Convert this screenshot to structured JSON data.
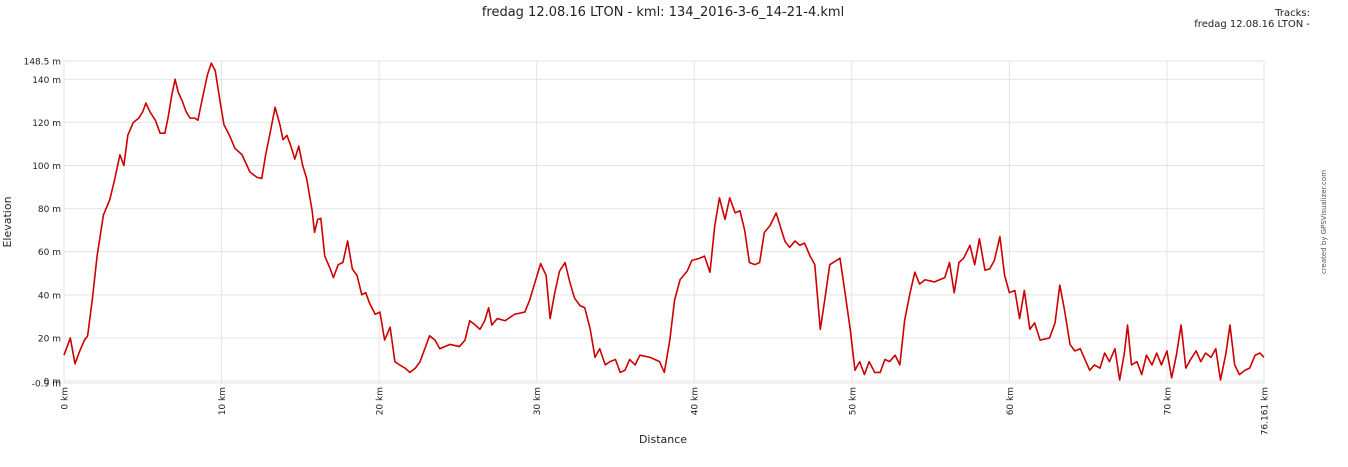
{
  "chart_data": {
    "type": "line",
    "title": "fredag 12.08.16 LTON - kml: 134_2016-3-6_14-21-4.kml",
    "legend_title": "Tracks:",
    "legend_position": "top-right",
    "x_label": "Distance",
    "y_label": "Elevation",
    "credit": "created by GPSVisualizer.com",
    "grid": true,
    "xlim": [
      0,
      76.161
    ],
    "ylim": [
      -0.9,
      148.5
    ],
    "xticks": [
      {
        "value": 0,
        "label": "0 km"
      },
      {
        "value": 10,
        "label": "10 km"
      },
      {
        "value": 20,
        "label": "20 km"
      },
      {
        "value": 30,
        "label": "30 km"
      },
      {
        "value": 40,
        "label": "40 km"
      },
      {
        "value": 50,
        "label": "50 km"
      },
      {
        "value": 60,
        "label": "60 km"
      },
      {
        "value": 70,
        "label": "70 km"
      },
      {
        "value": 76.161,
        "label": "76.161 km"
      }
    ],
    "yticks": [
      {
        "value": -0.9,
        "label": "-0.9 m"
      },
      {
        "value": 0,
        "label": "0 m"
      },
      {
        "value": 20,
        "label": "20 m"
      },
      {
        "value": 40,
        "label": "40 m"
      },
      {
        "value": 60,
        "label": "60 m"
      },
      {
        "value": 80,
        "label": "80 m"
      },
      {
        "value": 100,
        "label": "100 m"
      },
      {
        "value": 120,
        "label": "120 m"
      },
      {
        "value": 140,
        "label": "140 m"
      },
      {
        "value": 148.5,
        "label": "148.5 m"
      }
    ],
    "x": [
      0,
      0.25,
      0.4,
      0.6,
      0.7,
      1.0,
      1.3,
      1.5,
      1.8,
      2.1,
      2.5,
      2.9,
      3.2,
      3.55,
      3.8,
      4.05,
      4.4,
      4.75,
      5.0,
      5.2,
      5.45,
      5.8,
      6.1,
      6.4,
      6.6,
      6.85,
      7.05,
      7.25,
      7.5,
      7.75,
      8.0,
      8.3,
      8.5,
      8.75,
      9.1,
      9.35,
      9.6,
      9.9,
      10.15,
      10.5,
      10.85,
      11.3,
      11.8,
      12.25,
      12.55,
      12.8,
      13.05,
      13.4,
      13.7,
      13.9,
      14.15,
      14.4,
      14.65,
      14.9,
      15.15,
      15.4,
      15.75,
      15.9,
      16.1,
      16.3,
      16.55,
      16.9,
      17.1,
      17.4,
      17.7,
      18.0,
      18.3,
      18.6,
      18.9,
      19.15,
      19.4,
      19.75,
      20.05,
      20.35,
      20.7,
      21.0,
      21.3,
      21.65,
      21.95,
      22.3,
      22.6,
      22.9,
      23.2,
      23.55,
      23.85,
      24.5,
      25.1,
      25.45,
      25.75,
      26.1,
      26.4,
      26.7,
      26.95,
      27.15,
      27.5,
      28.0,
      28.6,
      29.25,
      29.55,
      29.9,
      30.25,
      30.6,
      30.85,
      31.15,
      31.45,
      31.8,
      32.1,
      32.4,
      32.75,
      33.05,
      33.4,
      33.7,
      34.0,
      34.35,
      34.65,
      35.0,
      35.3,
      35.6,
      35.9,
      36.25,
      36.55,
      37.2,
      37.8,
      38.1,
      38.45,
      38.75,
      39.1,
      39.55,
      39.85,
      40.35,
      40.65,
      41.0,
      41.3,
      41.6,
      41.95,
      42.25,
      42.6,
      42.9,
      43.2,
      43.5,
      43.85,
      44.15,
      44.45,
      44.8,
      45.2,
      45.45,
      45.75,
      46.05,
      46.4,
      46.7,
      47.0,
      47.35,
      47.65,
      48.0,
      48.3,
      48.6,
      49.25,
      49.55,
      49.9,
      50.2,
      50.5,
      50.8,
      51.1,
      51.45,
      51.8,
      52.1,
      52.4,
      52.75,
      53.05,
      53.35,
      53.7,
      54.0,
      54.3,
      54.65,
      55.25,
      55.9,
      56.2,
      56.5,
      56.8,
      57.1,
      57.5,
      57.8,
      58.1,
      58.45,
      58.75,
      59.05,
      59.4,
      59.7,
      60.0,
      60.35,
      60.65,
      60.95,
      61.3,
      61.6,
      61.95,
      62.55,
      62.9,
      63.2,
      63.5,
      63.85,
      64.15,
      64.5,
      64.8,
      65.1,
      65.4,
      65.75,
      66.05,
      66.35,
      66.7,
      67.0,
      67.3,
      67.5,
      67.75,
      68.1,
      68.4,
      68.7,
      69.05,
      69.35,
      69.65,
      70.0,
      70.3,
      70.6,
      70.9,
      71.2,
      71.5,
      71.85,
      72.15,
      72.45,
      72.8,
      73.1,
      73.4,
      73.75,
      74.0,
      74.3,
      74.6,
      74.95,
      75.25,
      75.6,
      75.9,
      76.161
    ],
    "series": [
      {
        "name": "fredag 12.08.16 LTON -",
        "color": "#cc0000",
        "values": [
          12,
          17,
          20,
          12,
          8,
          14,
          19,
          21,
          38,
          58,
          77,
          84,
          93,
          105,
          100,
          114,
          120,
          122,
          125,
          129,
          125,
          121,
          115,
          115,
          122,
          133,
          140,
          134,
          130,
          125,
          122,
          122,
          121,
          130,
          142,
          147.5,
          144,
          130,
          119,
          114,
          108,
          105,
          97,
          94.5,
          94,
          105,
          114,
          127,
          119,
          112,
          114,
          109,
          103,
          109,
          100,
          94,
          79,
          69,
          75,
          75.5,
          58,
          52,
          48,
          54,
          55,
          65,
          52,
          49,
          40,
          41,
          36,
          31,
          32,
          19,
          25,
          9,
          7.5,
          6,
          4,
          6,
          9,
          15,
          21,
          19,
          15,
          17,
          16,
          19,
          28,
          26,
          24,
          28,
          34,
          26,
          29,
          28,
          31,
          32,
          37.5,
          46,
          54.5,
          49,
          29,
          41,
          51,
          55,
          46,
          38.5,
          35,
          34,
          24,
          11,
          15,
          7.5,
          9,
          10,
          4,
          5,
          10,
          7.5,
          12,
          11,
          9,
          4,
          19,
          37.5,
          47,
          51,
          56,
          57,
          58,
          50.5,
          72,
          85,
          75,
          85,
          78,
          79,
          70,
          55,
          54,
          55,
          69,
          72,
          78,
          72,
          65,
          62,
          65,
          63,
          64,
          58,
          54,
          24,
          38.5,
          54,
          57,
          42,
          24,
          5,
          9,
          3,
          9,
          4,
          4,
          10,
          9,
          12,
          7.5,
          28,
          41,
          50.5,
          45,
          47,
          46,
          48,
          55,
          41,
          55,
          57,
          63,
          54,
          66,
          51.5,
          52,
          56,
          67,
          49,
          41,
          42,
          29,
          42,
          24,
          27,
          19,
          20,
          27,
          44.5,
          33,
          17,
          14,
          15,
          10,
          5,
          7.5,
          6,
          13,
          9,
          15,
          0.5,
          13,
          26,
          7.5,
          9,
          3,
          12,
          7.5,
          13,
          7.5,
          14,
          1.5,
          12,
          26,
          6,
          10,
          14,
          9,
          13,
          11,
          15,
          0.5,
          13,
          26,
          7.5,
          3,
          5,
          6,
          12,
          13,
          11
        ]
      }
    ]
  }
}
